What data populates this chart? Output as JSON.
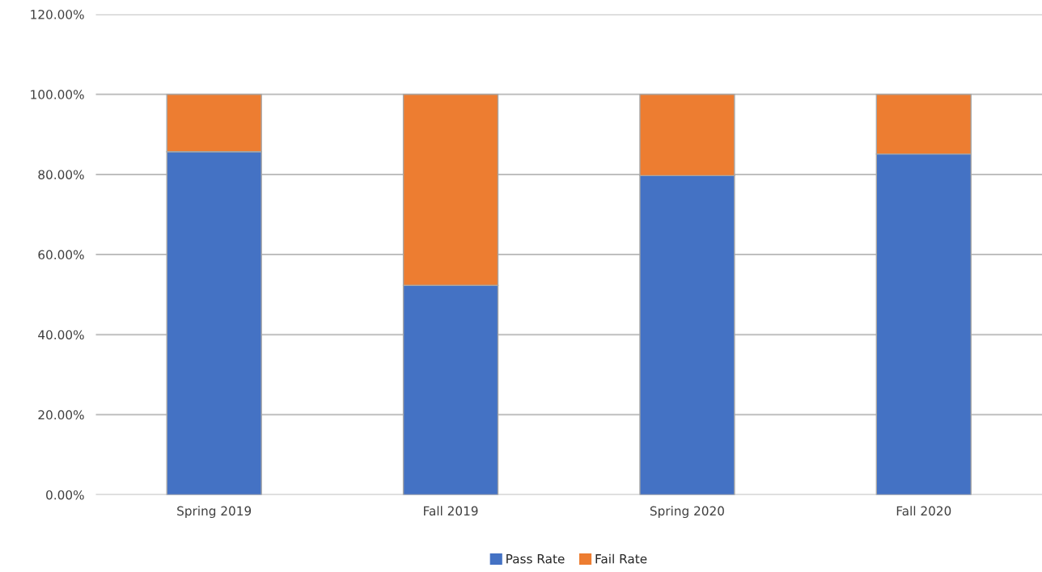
{
  "chart_data": {
    "type": "bar",
    "stacked": true,
    "categories": [
      "Spring 2019",
      "Fall 2019",
      "Spring 2020",
      "Fall 2020"
    ],
    "series": [
      {
        "name": "Pass Rate",
        "color": "#4472c4",
        "values": [
          85.7,
          52.3,
          79.7,
          85.1
        ]
      },
      {
        "name": "Fail Rate",
        "color": "#ed7d31",
        "values": [
          14.3,
          47.7,
          20.3,
          14.9
        ]
      }
    ],
    "ylim": [
      0,
      120
    ],
    "yticks": [
      {
        "value": 0,
        "label": "0.00%"
      },
      {
        "value": 20,
        "label": "20.00%"
      },
      {
        "value": 40,
        "label": "40.00%"
      },
      {
        "value": 60,
        "label": "60.00%"
      },
      {
        "value": 80,
        "label": "80.00%"
      },
      {
        "value": 100,
        "label": "100.00%"
      },
      {
        "value": 120,
        "label": "120.00%"
      }
    ],
    "grid": "y",
    "legend": "bottom"
  }
}
